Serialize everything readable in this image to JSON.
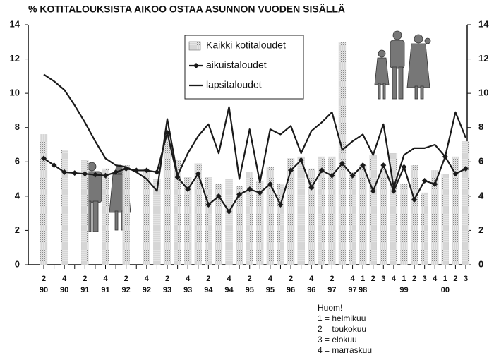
{
  "chart_data": {
    "type": "bar",
    "title": "% KOTITALOUKSISTA AIKOO OSTAA ASUNNON VUODEN SISÄLLÄ",
    "categories": [
      "2",
      null,
      "4",
      null,
      "2",
      null,
      "4",
      null,
      "2",
      null,
      "4",
      null,
      "2",
      null,
      "4",
      null,
      "2",
      null,
      "4",
      null,
      "2",
      null,
      "4",
      null,
      "2",
      null,
      "4",
      null,
      "2",
      null,
      "4",
      "1",
      "2",
      "3",
      "4",
      "1",
      "2",
      "3",
      "4",
      "1",
      "2",
      "3"
    ],
    "year_labels": [
      "90",
      null,
      "90",
      null,
      "91",
      null,
      "91",
      null,
      "92",
      null,
      "92",
      null,
      "93",
      null,
      "93",
      null,
      "94",
      null,
      "94",
      null,
      "95",
      null,
      "95",
      null,
      "96",
      null,
      "96",
      null,
      "97",
      null,
      "97",
      "98",
      null,
      null,
      null,
      "99",
      null,
      null,
      null,
      "00",
      null,
      null
    ],
    "series": [
      {
        "name": "Kaikki kotitaloudet",
        "type": "bar",
        "color": "#cfcfcf",
        "values": [
          7.6,
          null,
          6.7,
          null,
          6.1,
          null,
          5.6,
          null,
          5.8,
          null,
          5.6,
          5.0,
          7.8,
          6.1,
          5.1,
          5.9,
          5.1,
          4.7,
          5.0,
          4.6,
          5.4,
          4.9,
          5.7,
          4.7,
          6.2,
          6.3,
          5.6,
          6.3,
          6.3,
          13.0,
          5.4,
          5.8,
          6.4,
          5.6,
          6.5,
          4.7,
          5.8,
          4.2,
          5.5,
          5.3,
          6.3,
          7.2
        ]
      },
      {
        "name": "aikuistaloudet",
        "type": "line",
        "marker": "diamond",
        "color": "#1a1a1a",
        "values": [
          6.2,
          5.8,
          5.4,
          5.35,
          5.3,
          5.25,
          5.2,
          5.4,
          5.6,
          5.5,
          5.5,
          5.4,
          7.7,
          5.1,
          4.4,
          5.3,
          3.5,
          4.0,
          3.1,
          4.1,
          4.4,
          4.2,
          4.7,
          3.5,
          5.5,
          6.1,
          4.5,
          5.5,
          5.2,
          5.9,
          5.2,
          5.8,
          4.3,
          5.8,
          4.3,
          5.7,
          3.8,
          4.9,
          4.7,
          6.3,
          5.3,
          5.6
        ]
      },
      {
        "name": "lapsitaloudet",
        "type": "line",
        "color": "#1a1a1a",
        "values": [
          11.1,
          10.7,
          10.2,
          9.3,
          8.3,
          7.2,
          6.2,
          5.8,
          5.7,
          5.4,
          5.0,
          4.3,
          8.5,
          5.2,
          6.5,
          7.5,
          8.2,
          6.5,
          9.2,
          5.0,
          7.9,
          4.8,
          7.9,
          7.6,
          8.1,
          6.5,
          7.8,
          8.3,
          8.9,
          6.7,
          7.2,
          7.6,
          6.4,
          8.2,
          4.5,
          6.4,
          6.8,
          6.8,
          7.0,
          6.3,
          8.9,
          7.4
        ]
      }
    ],
    "ylim": [
      0,
      14
    ],
    "yticks": [
      0,
      2,
      4,
      6,
      8,
      10,
      12,
      14
    ],
    "y2lim": [
      0,
      14
    ],
    "y2ticks": [
      0,
      2,
      4,
      6,
      8,
      10,
      12,
      14
    ],
    "grid": false,
    "note": [
      "Huom!",
      "1 = helmikuu",
      "2 = toukokuu",
      "3 = elokuu",
      "4 = marraskuu"
    ]
  }
}
